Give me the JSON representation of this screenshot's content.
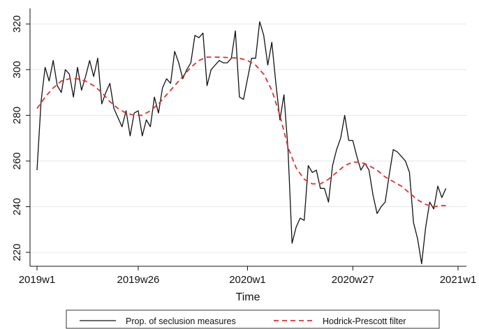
{
  "chart_data": {
    "type": "line",
    "title": "",
    "xlabel": "Time",
    "ylabel": "",
    "xlim": [
      1,
      105
    ],
    "ylim": [
      213,
      325
    ],
    "x_ticks": [
      {
        "label": "2019w1",
        "x": 1
      },
      {
        "label": "2019w26",
        "x": 26
      },
      {
        "label": "2020w1",
        "x": 53
      },
      {
        "label": "2020w27",
        "x": 79
      },
      {
        "label": "2021w1",
        "x": 105
      }
    ],
    "y_ticks": [
      {
        "label": "220",
        "y": 220
      },
      {
        "label": "240",
        "y": 240
      },
      {
        "label": "260",
        "y": 260
      },
      {
        "label": "280",
        "y": 280
      },
      {
        "label": "300",
        "y": 300
      },
      {
        "label": "320",
        "y": 320
      }
    ],
    "grid": "horizontal",
    "legend": "bottom",
    "series": [
      {
        "name": "Prop. of seclusion measures",
        "color": "#111111",
        "style": "solid",
        "x": [
          1,
          2,
          3,
          4,
          5,
          6,
          7,
          8,
          9,
          10,
          11,
          12,
          13,
          14,
          15,
          16,
          17,
          18,
          19,
          20,
          21,
          22,
          23,
          24,
          25,
          26,
          27,
          28,
          29,
          30,
          31,
          32,
          33,
          34,
          35,
          36,
          37,
          38,
          39,
          40,
          41,
          42,
          43,
          44,
          45,
          46,
          47,
          48,
          49,
          50,
          51,
          52,
          53,
          54,
          55,
          56,
          57,
          58,
          59,
          60,
          61,
          62,
          63,
          64,
          65,
          66,
          67,
          68,
          69,
          70,
          71,
          72,
          73,
          74,
          75,
          76,
          77,
          78,
          79,
          80,
          81,
          82,
          83,
          84,
          85,
          86,
          87,
          88,
          89,
          90,
          91,
          92,
          93,
          94,
          95,
          96,
          97,
          98,
          99,
          100,
          101,
          102
        ],
        "values": [
          256,
          286,
          301,
          295,
          304,
          293,
          290,
          300,
          298,
          288,
          301,
          291,
          297,
          304,
          297,
          305,
          285,
          290,
          294,
          283,
          279,
          275,
          282,
          271,
          281,
          282,
          271,
          278,
          275,
          288,
          281,
          292,
          296,
          294,
          308,
          303,
          296,
          300,
          303,
          315,
          314,
          316,
          293,
          300,
          302,
          304,
          303,
          303,
          305,
          317,
          288,
          287,
          296,
          305,
          305,
          321,
          315,
          302,
          312,
          294,
          278,
          289,
          265,
          224,
          231,
          235,
          234,
          258,
          255,
          256,
          248,
          248,
          242,
          258,
          265,
          270,
          280,
          269,
          269,
          262,
          256,
          259,
          256,
          245,
          237,
          240,
          242,
          254,
          265,
          264,
          262,
          260,
          255,
          233,
          226,
          215,
          231,
          242,
          239,
          249,
          244,
          248
        ]
      },
      {
        "name": "Hodrick-Prescott filter",
        "color": "#e03030",
        "style": "dashed",
        "x": [
          1,
          3,
          5,
          7,
          9,
          11,
          13,
          15,
          17,
          19,
          21,
          23,
          25,
          27,
          29,
          31,
          33,
          35,
          37,
          39,
          41,
          43,
          45,
          47,
          49,
          51,
          53,
          55,
          57,
          59,
          61,
          63,
          65,
          67,
          69,
          71,
          73,
          75,
          77,
          79,
          81,
          83,
          85,
          87,
          89,
          91,
          93,
          95,
          97,
          99,
          101,
          102
        ],
        "values": [
          283,
          288,
          292,
          295,
          296,
          296,
          295,
          293,
          290,
          286,
          283,
          281,
          280,
          280,
          282,
          285,
          289,
          293,
          297,
          301,
          304,
          305.5,
          305.5,
          305.4,
          305.2,
          305,
          304,
          302,
          298,
          291,
          280,
          266,
          257,
          252,
          250,
          250,
          252,
          255,
          258,
          259.5,
          259.5,
          258,
          256,
          253,
          251,
          249,
          246,
          243,
          241,
          240,
          240.5,
          240.5
        ]
      }
    ]
  }
}
